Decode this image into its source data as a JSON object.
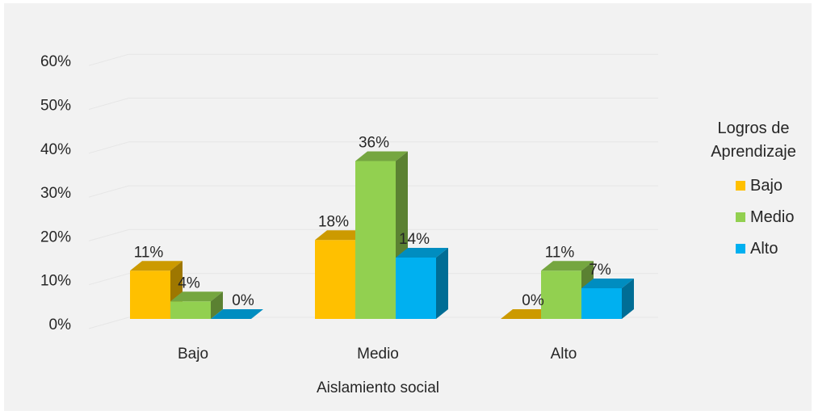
{
  "chart_data": {
    "type": "bar",
    "title": "",
    "xlabel": "Aislamiento social",
    "ylabel": "",
    "categories": [
      "Bajo",
      "Medio",
      "Alto"
    ],
    "ylim": [
      0,
      60
    ],
    "yticks": [
      "0%",
      "10%",
      "20%",
      "30%",
      "40%",
      "50%",
      "60%"
    ],
    "legend_title": "Logros de Aprendizaje",
    "legend_position": "right",
    "series": [
      {
        "name": "Bajo",
        "values": [
          11,
          18,
          0
        ],
        "labels": [
          "11%",
          "18%",
          "0%"
        ],
        "color": "#ffc000"
      },
      {
        "name": "Medio",
        "values": [
          4,
          36,
          11
        ],
        "labels": [
          "4%",
          "36%",
          "11%"
        ],
        "color": "#92d050"
      },
      {
        "name": "Alto",
        "values": [
          0,
          14,
          7
        ],
        "labels": [
          "0%",
          "14%",
          "7%"
        ],
        "color": "#00b0f0"
      }
    ]
  }
}
